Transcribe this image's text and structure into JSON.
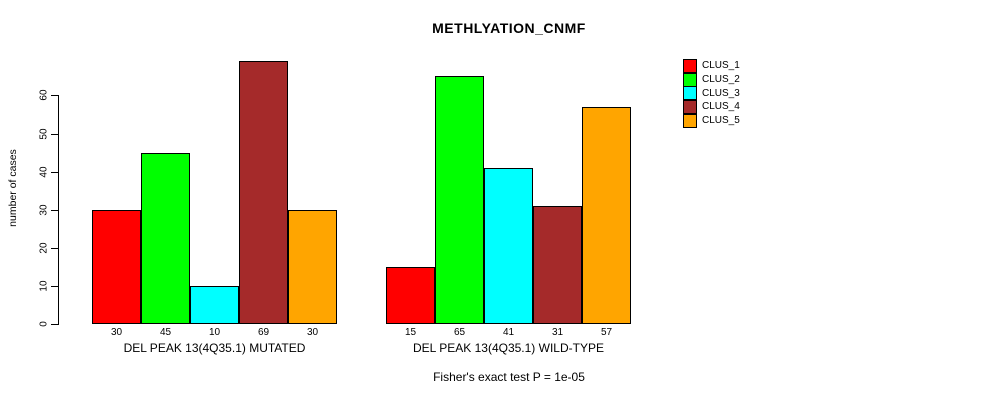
{
  "chart": {
    "title": "METHLYATION_CNMF",
    "ylabel": "number of cases",
    "footer": "Fisher's exact test P = 1e-05"
  },
  "chart_data": {
    "type": "bar",
    "title": "METHLYATION_CNMF",
    "xlabel": "",
    "ylabel": "number of cases",
    "ylim": [
      0,
      72
    ],
    "yticks": [
      0,
      10,
      20,
      30,
      40,
      50,
      60
    ],
    "grid": false,
    "legend_position": "top-right",
    "categories": [
      "DEL PEAK 13(4Q35.1) MUTATED",
      "DEL PEAK 13(4Q35.1) WILD-TYPE"
    ],
    "series": [
      {
        "name": "CLUS_1",
        "color": "#FF0000",
        "values": [
          30,
          15
        ]
      },
      {
        "name": "CLUS_2",
        "color": "#00FF00",
        "values": [
          45,
          65
        ]
      },
      {
        "name": "CLUS_3",
        "color": "#00FFFF",
        "values": [
          10,
          41
        ]
      },
      {
        "name": "CLUS_4",
        "color": "#A52A2A",
        "values": [
          69,
          31
        ]
      },
      {
        "name": "CLUS_5",
        "color": "#FFA500",
        "values": [
          30,
          57
        ]
      }
    ],
    "bar_value_labels": [
      [
        30,
        45,
        10,
        69,
        30
      ],
      [
        15,
        65,
        41,
        31,
        57
      ]
    ],
    "annotation": "Fisher's exact test P = 1e-05"
  }
}
